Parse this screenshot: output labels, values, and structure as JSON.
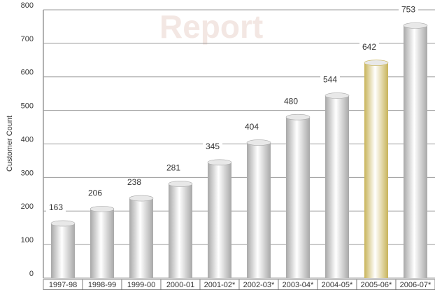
{
  "chart_data": {
    "type": "bar",
    "y_label": "Customer Count",
    "watermark": "Report",
    "categories": [
      "1997-98",
      "1998-99",
      "1999-00",
      "2000-01",
      "2001-02*",
      "2002-03*",
      "2003-04*",
      "2004-05*",
      "2005-06*",
      "2006-07*"
    ],
    "values": [
      163,
      206,
      238,
      281,
      345,
      404,
      480,
      544,
      642,
      753
    ],
    "colors": [
      "#a8a8a8",
      "#a8a8a8",
      "#a8a8a8",
      "#a8a8a8",
      "#a8a8a8",
      "#a8a8a8",
      "#a8a8a8",
      "#a8a8a8",
      "#c8b45a",
      "#a8a8a8"
    ],
    "ylim": [
      0,
      800
    ],
    "yticks": [
      0,
      100,
      200,
      300,
      400,
      500,
      600,
      700,
      800
    ],
    "grid": true
  }
}
